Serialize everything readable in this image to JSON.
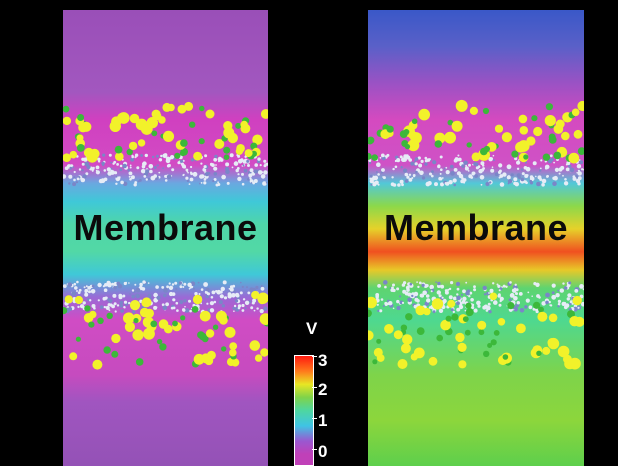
{
  "panels": [
    {
      "label": "Membrane"
    },
    {
      "label": "Membrane"
    }
  ],
  "colorbar": {
    "unit": "V",
    "ticks": [
      "3",
      "2",
      "1",
      "0"
    ],
    "min": 0,
    "max": 3,
    "colors": {
      "low": "#c040b8",
      "mid_low": "#3fc4e4",
      "mid": "#7fd34a",
      "mid_high": "#e8e624",
      "high": "#ff1a10"
    }
  },
  "ion_colors": {
    "yellow": "#f2f22a",
    "green": "#3cb83a",
    "lipid": "#e6ecf6"
  }
}
